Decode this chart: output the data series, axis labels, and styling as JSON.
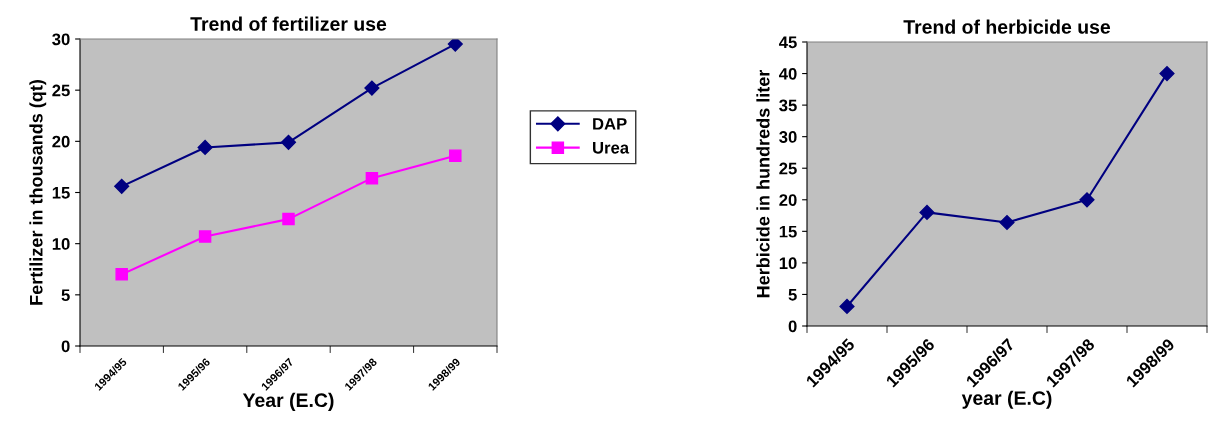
{
  "chart_data": [
    {
      "type": "line",
      "title": "Trend of fertilizer use",
      "xlabel": "Year (E.C)",
      "ylabel": "Fertilizer in thousands (qt)",
      "categories": [
        "1994/95",
        "1995/96",
        "1996/97",
        "1997/98",
        "1998/99"
      ],
      "ylim": [
        0,
        30
      ],
      "yticks": [
        0,
        5,
        10,
        15,
        20,
        25,
        30
      ],
      "grid": false,
      "legend": "right",
      "series": [
        {
          "name": "DAP",
          "color": "#000080",
          "marker": "diamond",
          "values": [
            15.6,
            19.4,
            19.9,
            25.2,
            29.5
          ]
        },
        {
          "name": "Urea",
          "color": "#ff00ff",
          "marker": "square",
          "values": [
            7.0,
            10.7,
            12.4,
            16.4,
            18.6
          ]
        }
      ]
    },
    {
      "type": "line",
      "title": "Trend of herbicide use",
      "xlabel": "year (E.C)",
      "ylabel": "Herbicide in hundreds liter",
      "categories": [
        "1994/95",
        "1995/96",
        "1996/97",
        "1997/98",
        "1998/99"
      ],
      "ylim": [
        0,
        45
      ],
      "yticks": [
        0,
        5,
        10,
        15,
        20,
        25,
        30,
        35,
        40,
        45
      ],
      "grid": false,
      "legend": false,
      "marker": "diamond",
      "series": [
        {
          "color": "#000080",
          "values": [
            3.1,
            18.0,
            16.4,
            20.0,
            40.0
          ]
        }
      ]
    }
  ]
}
